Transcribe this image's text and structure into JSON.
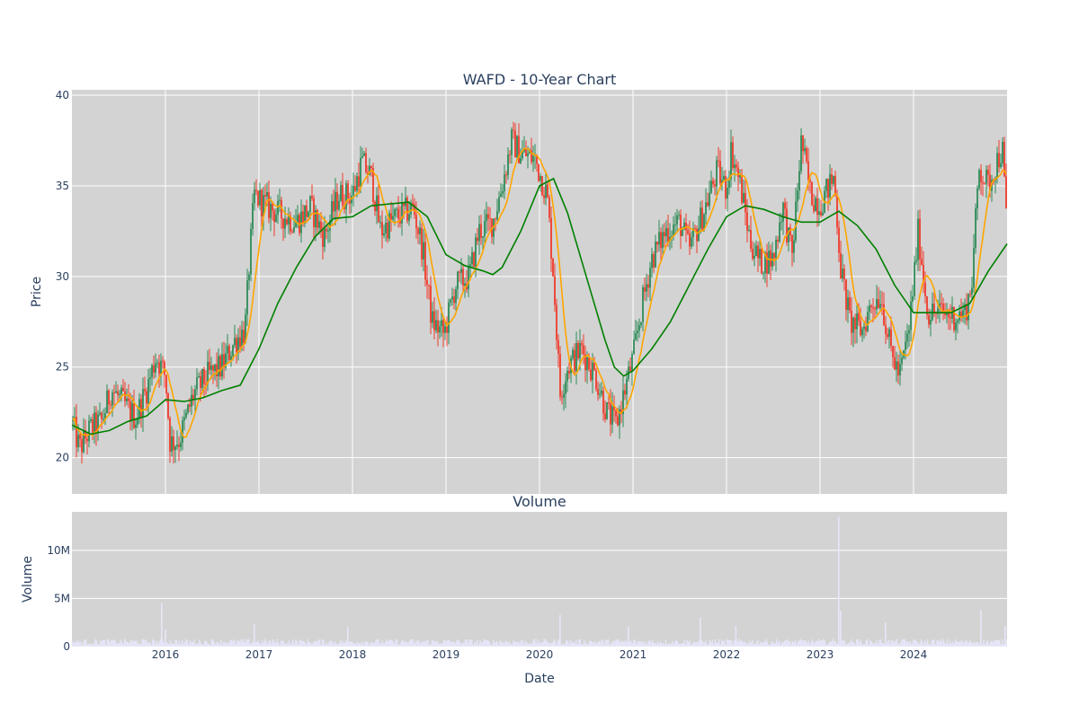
{
  "chart_data": [
    {
      "type": "candlestick",
      "title": "WAFD - 10-Year Chart",
      "ylabel": "Price",
      "ylim": [
        18,
        40.3
      ],
      "yticks": [
        20,
        25,
        30,
        35,
        40
      ],
      "xlim": [
        2015.0,
        2025.0
      ],
      "xticks": [
        {
          "value": 2016,
          "label": "2016"
        },
        {
          "value": 2017,
          "label": "2017"
        },
        {
          "value": 2018,
          "label": "2018"
        },
        {
          "value": 2019,
          "label": "2019"
        },
        {
          "value": 2020,
          "label": "2020"
        },
        {
          "value": 2021,
          "label": "2021"
        },
        {
          "value": 2022,
          "label": "2022"
        },
        {
          "value": 2023,
          "label": "2023"
        },
        {
          "value": 2024,
          "label": "2024"
        }
      ],
      "grid": true,
      "colors": {
        "increasing": "#2e8b57",
        "decreasing": "#ef3b2c",
        "ma_short": "#ffa500",
        "ma_long": "#008000",
        "plot_bg": "#d3d3d3"
      },
      "price_path": [
        [
          2015.0,
          22.0
        ],
        [
          2015.08,
          20.5
        ],
        [
          2015.2,
          21.6
        ],
        [
          2015.32,
          22.0
        ],
        [
          2015.42,
          23.8
        ],
        [
          2015.55,
          23.0
        ],
        [
          2015.68,
          22.2
        ],
        [
          2015.8,
          23.8
        ],
        [
          2015.9,
          25.6
        ],
        [
          2016.0,
          24.5
        ],
        [
          2016.05,
          20.8
        ],
        [
          2016.15,
          21.0
        ],
        [
          2016.3,
          23.5
        ],
        [
          2016.45,
          24.5
        ],
        [
          2016.6,
          25.0
        ],
        [
          2016.75,
          26.5
        ],
        [
          2016.85,
          27.0
        ],
        [
          2016.9,
          31.0
        ],
        [
          2016.95,
          34.5
        ],
        [
          2017.05,
          34.0
        ],
        [
          2017.2,
          33.5
        ],
        [
          2017.4,
          33.0
        ],
        [
          2017.55,
          33.8
        ],
        [
          2017.7,
          32.2
        ],
        [
          2017.85,
          34.5
        ],
        [
          2018.0,
          34.5
        ],
        [
          2018.1,
          36.3
        ],
        [
          2018.2,
          35.5
        ],
        [
          2018.3,
          32.5
        ],
        [
          2018.45,
          33.2
        ],
        [
          2018.65,
          33.8
        ],
        [
          2018.75,
          31.5
        ],
        [
          2018.85,
          27.5
        ],
        [
          2018.98,
          26.8
        ],
        [
          2019.1,
          29.5
        ],
        [
          2019.25,
          30.0
        ],
        [
          2019.35,
          32.5
        ],
        [
          2019.5,
          33.0
        ],
        [
          2019.6,
          35.0
        ],
        [
          2019.7,
          37.5
        ],
        [
          2019.8,
          36.8
        ],
        [
          2019.95,
          36.5
        ],
        [
          2020.08,
          34.5
        ],
        [
          2020.15,
          30.0
        ],
        [
          2020.22,
          23.5
        ],
        [
          2020.3,
          25.0
        ],
        [
          2020.45,
          26.0
        ],
        [
          2020.6,
          24.5
        ],
        [
          2020.72,
          22.5
        ],
        [
          2020.82,
          21.8
        ],
        [
          2020.9,
          23.5
        ],
        [
          2021.0,
          25.5
        ],
        [
          2021.1,
          28.5
        ],
        [
          2021.2,
          31.0
        ],
        [
          2021.35,
          32.5
        ],
        [
          2021.5,
          33.0
        ],
        [
          2021.6,
          31.5
        ],
        [
          2021.75,
          33.5
        ],
        [
          2021.9,
          35.8
        ],
        [
          2022.0,
          34.8
        ],
        [
          2022.05,
          37.0
        ],
        [
          2022.15,
          35.0
        ],
        [
          2022.25,
          32.0
        ],
        [
          2022.35,
          30.8
        ],
        [
          2022.5,
          31.0
        ],
        [
          2022.6,
          34.0
        ],
        [
          2022.7,
          31.0
        ],
        [
          2022.8,
          37.5
        ],
        [
          2022.9,
          34.5
        ],
        [
          2023.0,
          34.0
        ],
        [
          2023.15,
          35.5
        ],
        [
          2023.22,
          30.5
        ],
        [
          2023.32,
          27.5
        ],
        [
          2023.45,
          27.0
        ],
        [
          2023.55,
          28.5
        ],
        [
          2023.65,
          29.0
        ],
        [
          2023.75,
          26.0
        ],
        [
          2023.85,
          24.5
        ],
        [
          2023.95,
          27.0
        ],
        [
          2024.05,
          32.5
        ],
        [
          2024.15,
          28.0
        ],
        [
          2024.3,
          28.0
        ],
        [
          2024.45,
          27.8
        ],
        [
          2024.55,
          28.0
        ],
        [
          2024.62,
          29.5
        ],
        [
          2024.7,
          36.0
        ],
        [
          2024.8,
          35.0
        ],
        [
          2024.9,
          36.5
        ],
        [
          2024.95,
          37.0
        ],
        [
          2025.0,
          32.5
        ]
      ],
      "ma_long_path": [
        [
          2015.0,
          21.8
        ],
        [
          2015.2,
          21.3
        ],
        [
          2015.4,
          21.5
        ],
        [
          2015.6,
          22.0
        ],
        [
          2015.8,
          22.3
        ],
        [
          2016.0,
          23.2
        ],
        [
          2016.2,
          23.1
        ],
        [
          2016.4,
          23.3
        ],
        [
          2016.6,
          23.7
        ],
        [
          2016.8,
          24.0
        ],
        [
          2016.9,
          25.0
        ],
        [
          2017.0,
          26.0
        ],
        [
          2017.2,
          28.5
        ],
        [
          2017.4,
          30.5
        ],
        [
          2017.6,
          32.2
        ],
        [
          2017.8,
          33.2
        ],
        [
          2018.0,
          33.3
        ],
        [
          2018.2,
          33.9
        ],
        [
          2018.4,
          34.0
        ],
        [
          2018.6,
          34.1
        ],
        [
          2018.8,
          33.3
        ],
        [
          2019.0,
          31.2
        ],
        [
          2019.2,
          30.6
        ],
        [
          2019.4,
          30.3
        ],
        [
          2019.5,
          30.1
        ],
        [
          2019.6,
          30.5
        ],
        [
          2019.8,
          32.5
        ],
        [
          2020.0,
          35.0
        ],
        [
          2020.15,
          35.4
        ],
        [
          2020.3,
          33.5
        ],
        [
          2020.5,
          30.0
        ],
        [
          2020.7,
          26.5
        ],
        [
          2020.8,
          25.0
        ],
        [
          2020.9,
          24.5
        ],
        [
          2021.0,
          24.8
        ],
        [
          2021.2,
          26.0
        ],
        [
          2021.4,
          27.5
        ],
        [
          2021.6,
          29.5
        ],
        [
          2021.8,
          31.5
        ],
        [
          2022.0,
          33.3
        ],
        [
          2022.2,
          33.9
        ],
        [
          2022.4,
          33.7
        ],
        [
          2022.6,
          33.3
        ],
        [
          2022.8,
          33.0
        ],
        [
          2023.0,
          33.0
        ],
        [
          2023.2,
          33.6
        ],
        [
          2023.4,
          32.8
        ],
        [
          2023.6,
          31.5
        ],
        [
          2023.8,
          29.5
        ],
        [
          2024.0,
          28.0
        ],
        [
          2024.2,
          28.0
        ],
        [
          2024.4,
          28.0
        ],
        [
          2024.6,
          28.5
        ],
        [
          2024.8,
          30.3
        ],
        [
          2025.0,
          31.8
        ]
      ]
    },
    {
      "type": "bar",
      "subtitle": "Volume",
      "xlabel": "Date",
      "ylabel": "Volume",
      "ylim": [
        0,
        14000000
      ],
      "yticks": [
        {
          "value": 0,
          "label": "0"
        },
        {
          "value": 5000000,
          "label": "5M"
        },
        {
          "value": 10000000,
          "label": "10M"
        }
      ],
      "typical_volume": 500000,
      "spikes": [
        {
          "x": 2015.96,
          "value": 4500000
        },
        {
          "x": 2016.0,
          "value": 1800000
        },
        {
          "x": 2016.95,
          "value": 2300000
        },
        {
          "x": 2017.95,
          "value": 2000000
        },
        {
          "x": 2020.22,
          "value": 3300000
        },
        {
          "x": 2020.95,
          "value": 2100000
        },
        {
          "x": 2021.72,
          "value": 3000000
        },
        {
          "x": 2022.1,
          "value": 2100000
        },
        {
          "x": 2023.2,
          "value": 13500000
        },
        {
          "x": 2023.22,
          "value": 3700000
        },
        {
          "x": 2023.7,
          "value": 2500000
        },
        {
          "x": 2024.72,
          "value": 3800000
        },
        {
          "x": 2024.98,
          "value": 2100000
        }
      ],
      "color": "#e6e6fa"
    }
  ]
}
